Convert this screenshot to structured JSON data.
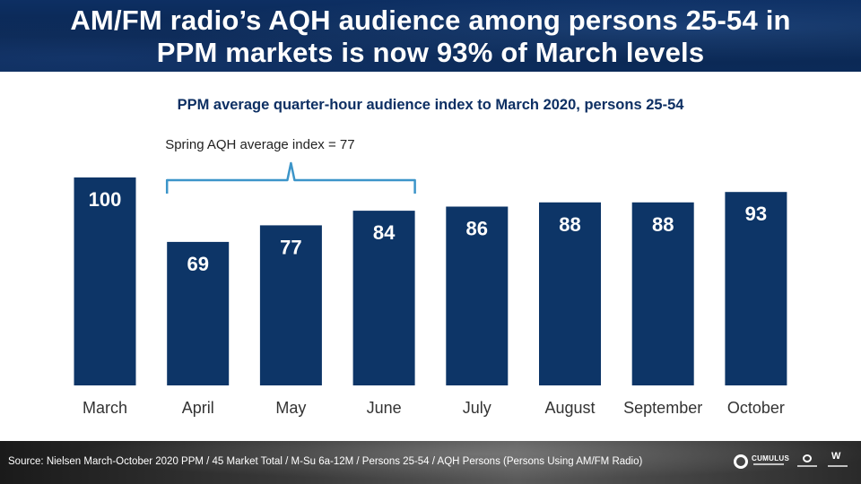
{
  "header": {
    "title_line1": "AM/FM radio’s AQH audience among persons 25-54 in",
    "title_line2": "PPM markets is now 93% of March levels"
  },
  "footer": {
    "source": "Source: Nielsen March-October 2020 PPM / 45 Market Total / M-Su 6a-12M / Persons 25-54 / AQH Persons (Persons Using AM/FM Radio)",
    "logo_text": "CUMULUS"
  },
  "colors": {
    "bar": "#0d3567",
    "bracket": "#3c95c9",
    "title_bg": "#0b2a58"
  },
  "chart_data": {
    "type": "bar",
    "title": "PPM average quarter-hour audience index to March 2020, persons 25-54",
    "categories": [
      "March",
      "April",
      "May",
      "June",
      "July",
      "August",
      "September",
      "October"
    ],
    "values": [
      100,
      69,
      77,
      84,
      86,
      88,
      88,
      93
    ],
    "data_labels": [
      "100",
      "69",
      "77",
      "84",
      "86",
      "88",
      "88",
      "93"
    ],
    "xlabel": "",
    "ylabel": "",
    "ylim": [
      0,
      100
    ],
    "grid": false,
    "annotation": {
      "text": "Spring AQH average index = 77",
      "from_category": "April",
      "to_category": "June"
    }
  }
}
